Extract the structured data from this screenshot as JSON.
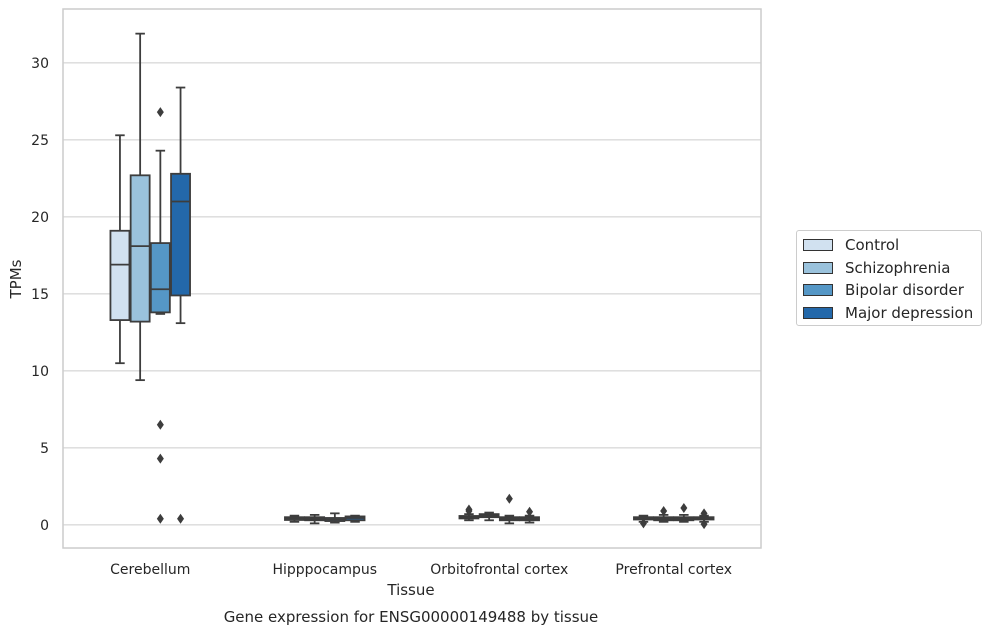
{
  "chart_data": {
    "type": "box",
    "title": "Gene expression for ENSG00000149488 by tissue",
    "xlabel": "Tissue",
    "ylabel": "TPMs",
    "ylim": [
      -1.5,
      33.5
    ],
    "yticks": [
      0,
      5,
      10,
      15,
      20,
      25,
      30
    ],
    "grid": "horizontal",
    "legend_position": "right",
    "categories": [
      "Cerebellum",
      "Hipppocampus",
      "Orbitofrontal cortex",
      "Prefrontal cortex"
    ],
    "series": [
      {
        "name": "Control",
        "color": "#d1e1f0",
        "boxes": [
          {
            "whislo": 10.5,
            "q1": 13.3,
            "med": 16.9,
            "q3": 19.1,
            "whishi": 25.3,
            "fliers": []
          },
          {
            "whislo": 0.2,
            "q1": 0.32,
            "med": 0.42,
            "q3": 0.5,
            "whishi": 0.6,
            "fliers": []
          },
          {
            "whislo": 0.3,
            "q1": 0.42,
            "med": 0.5,
            "q3": 0.58,
            "whishi": 0.7,
            "fliers": [
              0.9,
              1.0
            ]
          },
          {
            "whislo": 0.2,
            "q1": 0.35,
            "med": 0.42,
            "q3": 0.5,
            "whishi": 0.6,
            "fliers": [
              0.1
            ]
          }
        ]
      },
      {
        "name": "Schizophrenia",
        "color": "#9ac2dc",
        "boxes": [
          {
            "whislo": 9.4,
            "q1": 13.2,
            "med": 18.1,
            "q3": 22.7,
            "whishi": 31.9,
            "fliers": []
          },
          {
            "whislo": 0.1,
            "q1": 0.3,
            "med": 0.4,
            "q3": 0.5,
            "whishi": 0.65,
            "fliers": []
          },
          {
            "whislo": 0.3,
            "q1": 0.5,
            "med": 0.6,
            "q3": 0.7,
            "whishi": 0.8,
            "fliers": []
          },
          {
            "whislo": 0.2,
            "q1": 0.3,
            "med": 0.4,
            "q3": 0.5,
            "whishi": 0.65,
            "fliers": [
              0.9
            ]
          }
        ]
      },
      {
        "name": "Bipolar disorder",
        "color": "#5597c6",
        "boxes": [
          {
            "whislo": 13.7,
            "q1": 13.8,
            "med": 15.3,
            "q3": 18.3,
            "whishi": 24.3,
            "fliers": [
              26.8,
              6.5,
              4.3,
              0.4
            ]
          },
          {
            "whislo": 0.15,
            "q1": 0.25,
            "med": 0.35,
            "q3": 0.45,
            "whishi": 0.75,
            "fliers": []
          },
          {
            "whislo": 0.1,
            "q1": 0.3,
            "med": 0.4,
            "q3": 0.5,
            "whishi": 0.6,
            "fliers": [
              1.7
            ]
          },
          {
            "whislo": 0.2,
            "q1": 0.3,
            "med": 0.4,
            "q3": 0.5,
            "whishi": 0.65,
            "fliers": [
              1.1
            ]
          }
        ]
      },
      {
        "name": "Major depression",
        "color": "#2368aa",
        "boxes": [
          {
            "whislo": 13.1,
            "q1": 14.9,
            "med": 21.0,
            "q3": 22.8,
            "whishi": 28.4,
            "fliers": [
              0.4
            ]
          },
          {
            "whislo": 0.2,
            "q1": 0.3,
            "med": 0.45,
            "q3": 0.55,
            "whishi": 0.6,
            "fliers": []
          },
          {
            "whislo": 0.15,
            "q1": 0.3,
            "med": 0.4,
            "q3": 0.5,
            "whishi": 0.6,
            "fliers": [
              0.85
            ]
          },
          {
            "whislo": 0.2,
            "q1": 0.35,
            "med": 0.42,
            "q3": 0.5,
            "whishi": 0.6,
            "fliers": [
              0.75,
              0.05
            ]
          }
        ]
      }
    ]
  }
}
